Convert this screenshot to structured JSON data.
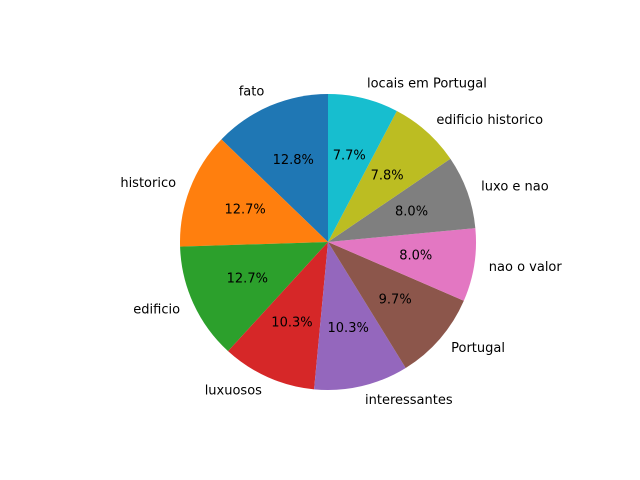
{
  "chart_data": {
    "type": "pie",
    "title": "",
    "start_angle_deg": 90,
    "direction": "counterclockwise",
    "slices": [
      {
        "label": "fato",
        "value": 12.8,
        "pct_label": "12.8%",
        "color": "#1f77b4"
      },
      {
        "label": "historico",
        "value": 12.7,
        "pct_label": "12.7%",
        "color": "#ff7f0e"
      },
      {
        "label": "edificio",
        "value": 12.7,
        "pct_label": "12.7%",
        "color": "#2ca02c"
      },
      {
        "label": "luxuosos",
        "value": 10.3,
        "pct_label": "10.3%",
        "color": "#d62728"
      },
      {
        "label": "interessantes",
        "value": 10.3,
        "pct_label": "10.3%",
        "color": "#9467bd"
      },
      {
        "label": "Portugal",
        "value": 9.7,
        "pct_label": "9.7%",
        "color": "#8c564b"
      },
      {
        "label": "nao o valor",
        "value": 8.0,
        "pct_label": "8.0%",
        "color": "#e377c2"
      },
      {
        "label": "luxo e nao",
        "value": 8.0,
        "pct_label": "8.0%",
        "color": "#7f7f7f"
      },
      {
        "label": "edificio historico",
        "value": 7.8,
        "pct_label": "7.8%",
        "color": "#bcbd22"
      },
      {
        "label": "locais em Portugal",
        "value": 7.7,
        "pct_label": "7.7%",
        "color": "#17becf"
      }
    ]
  }
}
